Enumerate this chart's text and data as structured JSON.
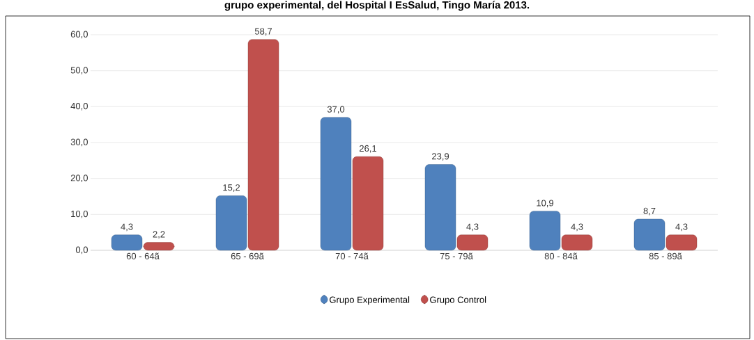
{
  "chart_data": {
    "type": "bar",
    "title": "grupo experimental, del Hospital I EsSalud, Tingo María 2013.",
    "categories": [
      "60 - 64ã",
      "65 - 69ã",
      "70 - 74ã",
      "75 - 79ã",
      "80 - 84ã",
      "85 - 89ã"
    ],
    "series": [
      {
        "name": "Grupo Experimental",
        "color": "#4f81bd",
        "values": [
          4.3,
          15.2,
          37.0,
          23.9,
          10.9,
          8.7
        ],
        "value_labels": [
          "4,3",
          "15,2",
          "37,0",
          "23,9",
          "10,9",
          "8,7"
        ]
      },
      {
        "name": "Grupo Control",
        "color": "#c0504d",
        "values": [
          2.2,
          58.7,
          26.1,
          4.3,
          4.3,
          4.3
        ],
        "value_labels": [
          "2,2",
          "58,7",
          "26,1",
          "4,3",
          "4,3",
          "4,3"
        ]
      }
    ],
    "ylim": [
      0,
      60
    ],
    "yticks": [
      {
        "value": 0,
        "label": "0,0"
      },
      {
        "value": 10,
        "label": "10,0"
      },
      {
        "value": 20,
        "label": "20,0"
      },
      {
        "value": 30,
        "label": "30,0"
      },
      {
        "value": 40,
        "label": "40,0"
      },
      {
        "value": 50,
        "label": "50,0"
      },
      {
        "value": 60,
        "label": "60,0"
      }
    ],
    "grid": "y",
    "legend": "bottom"
  }
}
